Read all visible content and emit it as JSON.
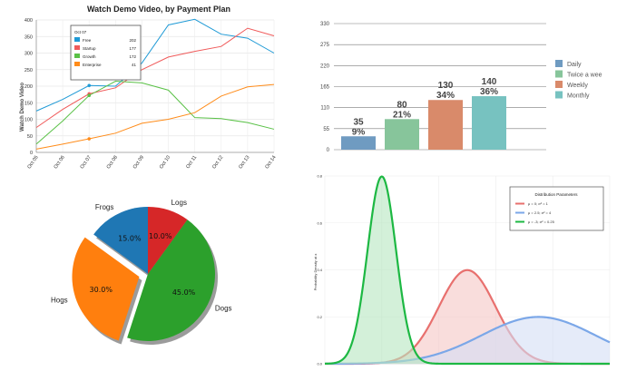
{
  "chart_data": [
    {
      "type": "line",
      "title": "Watch Demo Video, by Payment Plan",
      "ylabel": "Watch Demo Video",
      "xlabel": "",
      "categories": [
        "Oct 05",
        "Oct 06",
        "Oct 07",
        "Oct 08",
        "Oct 09",
        "Oct 10",
        "Oct 11",
        "Oct 12",
        "Oct 13",
        "Oct 14"
      ],
      "ylim": [
        0,
        400
      ],
      "yticks": [
        0,
        50,
        100,
        150,
        200,
        250,
        300,
        350,
        400
      ],
      "grid": true,
      "series": [
        {
          "name": "Free",
          "color": "#1f9ad6",
          "values": [
            125,
            160,
            202,
            200,
            270,
            385,
            402,
            357,
            345,
            300
          ]
        },
        {
          "name": "Startup",
          "color": "#f05a5a",
          "values": [
            75,
            130,
            177,
            195,
            250,
            288,
            305,
            320,
            375,
            352
          ]
        },
        {
          "name": "Growth",
          "color": "#59c146",
          "values": [
            25,
            95,
            172,
            215,
            210,
            188,
            105,
            102,
            90,
            70
          ]
        },
        {
          "name": "Enterprise",
          "color": "#ff8c1a",
          "values": [
            10,
            25,
            41,
            58,
            88,
            100,
            120,
            170,
            198,
            205
          ]
        }
      ],
      "tooltip": {
        "title": "Oct 07",
        "items": [
          {
            "name": "Free",
            "value": "202",
            "color": "#1f9ad6"
          },
          {
            "name": "Startup",
            "value": "177",
            "color": "#f05a5a"
          },
          {
            "name": "Growth",
            "value": "172",
            "color": "#59c146"
          },
          {
            "name": "Enterprise",
            "value": "41",
            "color": "#ff8c1a"
          }
        ]
      }
    },
    {
      "type": "bar",
      "categories": [
        "Daily",
        "Twice a wee",
        "Weekly",
        "Monthly"
      ],
      "values": [
        35,
        80,
        130,
        140
      ],
      "value_labels": [
        "35",
        "80",
        "130",
        "140"
      ],
      "percent_labels": [
        "9%",
        "21%",
        "34%",
        "36%"
      ],
      "colors": [
        "#6f9bc1",
        "#87c59b",
        "#d98a6a",
        "#77c2c0"
      ],
      "ylim": [
        0,
        330
      ],
      "yticks": [
        0,
        55,
        110,
        165,
        220,
        275,
        330
      ],
      "grid": true,
      "legend": "right"
    },
    {
      "type": "pie",
      "labels": [
        "Frogs",
        "Hogs",
        "Dogs",
        "Logs"
      ],
      "values": [
        15,
        30,
        45,
        10
      ],
      "pct_labels": [
        "15.0%",
        "30.0%",
        "45.0%",
        "10.0%"
      ],
      "colors": [
        "#1f77b4",
        "#ff7f0e",
        "#2ca02c",
        "#d62728"
      ],
      "explode": "Hogs",
      "shadow": true
    },
    {
      "type": "area",
      "ylabel": "Probability Density at x",
      "legend_title": "Distribution Parameters",
      "legend": "top-right",
      "ylim": [
        0,
        0.8
      ],
      "yticks": [
        "0.0",
        "0.2",
        "0.4",
        "0.6",
        "0.8"
      ],
      "xlim": [
        -5,
        5
      ],
      "grid": true,
      "series": [
        {
          "name": "μ = 0; σ² = 1",
          "mu": 0,
          "var": 1,
          "color": "#e8706e",
          "fill": "#f5c7c5"
        },
        {
          "name": "μ = 2.5; σ² = 4",
          "mu": 2.5,
          "var": 4,
          "color": "#7ba7e8",
          "fill": "#d3def5"
        },
        {
          "name": "μ = -3; σ² = 0.25",
          "mu": -3,
          "var": 0.25,
          "color": "#1db843",
          "fill": "#b6e6bf"
        }
      ]
    }
  ]
}
